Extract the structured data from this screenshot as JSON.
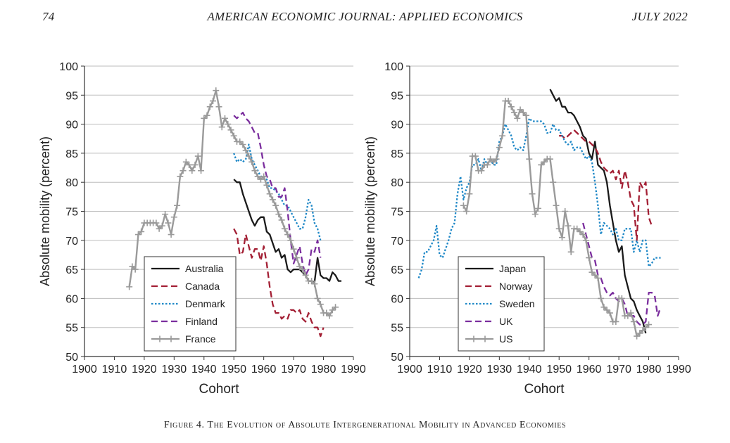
{
  "header": {
    "page_number": "74",
    "journal": "AMERICAN ECONOMIC JOURNAL: APPLIED ECONOMICS",
    "date": "JULY 2022"
  },
  "caption": "Figure 4. The Evolution of Absolute Intergenerational Mobility in Advanced Economies",
  "colors": {
    "black": "#1a1a1a",
    "red": "#a31f34",
    "blue": "#1f88c7",
    "purple": "#7b2e9e",
    "gray": "#9a9a9a",
    "grid": "#bdbdbd"
  },
  "chart_data": [
    {
      "type": "line",
      "xlabel": "Cohort",
      "ylabel": "Absolute mobility (percent)",
      "xlim": [
        1900,
        1990
      ],
      "ylim": [
        50,
        100
      ],
      "xticks": [
        "1900",
        "1910",
        "1920",
        "1930",
        "1940",
        "1950",
        "1960",
        "1970",
        "1980",
        "1990"
      ],
      "yticks": [
        "50",
        "55",
        "60",
        "65",
        "70",
        "75",
        "80",
        "85",
        "90",
        "95",
        "100"
      ],
      "legend": "bottom-left",
      "series": [
        {
          "name": "Australia",
          "style": "solid",
          "color": "#1a1a1a",
          "marker": false,
          "x": [
            1950,
            1951,
            1952,
            1953,
            1954,
            1955,
            1956,
            1957,
            1958,
            1959,
            1960,
            1961,
            1962,
            1963,
            1964,
            1965,
            1966,
            1967,
            1968,
            1969,
            1970,
            1971,
            1972,
            1973,
            1974,
            1975,
            1976,
            1977,
            1978,
            1979,
            1980,
            1981,
            1982,
            1983,
            1984,
            1985,
            1986
          ],
          "y": [
            80.5,
            80,
            80,
            78,
            76.5,
            75,
            73.5,
            72.5,
            73.5,
            74,
            74,
            71.5,
            71,
            69.5,
            68,
            68.5,
            67,
            67.5,
            65,
            64.5,
            65,
            65,
            65,
            64.5,
            64,
            63,
            63,
            62.8,
            67,
            64,
            63.5,
            63.5,
            63,
            64.5,
            64,
            63,
            63
          ]
        },
        {
          "name": "Canada",
          "style": "dashed",
          "color": "#a31f34",
          "marker": false,
          "x": [
            1950,
            1951,
            1952,
            1953,
            1954,
            1955,
            1956,
            1957,
            1958,
            1959,
            1960,
            1961,
            1962,
            1963,
            1964,
            1965,
            1966,
            1967,
            1968,
            1969,
            1970,
            1971,
            1972,
            1973,
            1974,
            1975,
            1976,
            1977,
            1978,
            1979,
            1980
          ],
          "y": [
            72,
            71,
            67.5,
            68,
            71,
            69,
            67,
            68.5,
            68.5,
            66.5,
            69,
            66,
            62,
            59,
            57.5,
            57.5,
            56.5,
            57,
            56.5,
            58,
            58,
            57.5,
            58,
            56.5,
            56,
            57.5,
            56,
            55,
            55,
            53.5,
            55
          ]
        },
        {
          "name": "Denmark",
          "style": "dotted",
          "color": "#1f88c7",
          "marker": false,
          "x": [
            1950,
            1951,
            1952,
            1953,
            1954,
            1955,
            1956,
            1957,
            1958,
            1959,
            1960,
            1961,
            1962,
            1963,
            1964,
            1965,
            1966,
            1967,
            1968,
            1969,
            1970,
            1971,
            1972,
            1973,
            1974,
            1975,
            1976,
            1977,
            1978,
            1979
          ],
          "y": [
            85,
            83.5,
            84,
            83.5,
            84,
            86.5,
            84,
            83,
            82,
            81,
            81,
            80.5,
            79,
            79,
            78.5,
            78,
            77,
            76,
            76,
            75,
            74,
            73,
            72,
            72,
            74,
            77,
            76,
            73,
            72,
            70
          ]
        },
        {
          "name": "Finland",
          "style": "dashed",
          "color": "#7b2e9e",
          "marker": false,
          "x": [
            1950,
            1951,
            1952,
            1953,
            1954,
            1955,
            1956,
            1957,
            1958,
            1959,
            1960,
            1961,
            1962,
            1963,
            1964,
            1965,
            1966,
            1967,
            1968,
            1969,
            1970,
            1971,
            1972,
            1973,
            1974,
            1975,
            1976,
            1977,
            1978,
            1979
          ],
          "y": [
            91.5,
            91,
            91.5,
            92,
            91,
            90.5,
            89.5,
            88.5,
            88.5,
            86,
            83,
            81,
            80.5,
            79,
            79,
            77.5,
            77.5,
            79,
            75,
            70,
            66,
            67.5,
            69,
            66,
            64,
            65,
            68.5,
            68,
            70,
            67
          ]
        },
        {
          "name": "France",
          "style": "solid",
          "color": "#9a9a9a",
          "marker": true,
          "x": [
            1915,
            1916,
            1917,
            1918,
            1919,
            1920,
            1921,
            1922,
            1923,
            1924,
            1925,
            1926,
            1927,
            1928,
            1929,
            1930,
            1931,
            1932,
            1933,
            1934,
            1935,
            1936,
            1937,
            1938,
            1939,
            1940,
            1941,
            1942,
            1943,
            1944,
            1945,
            1946,
            1947,
            1948,
            1949,
            1950,
            1951,
            1952,
            1953,
            1954,
            1955,
            1956,
            1957,
            1958,
            1959,
            1960,
            1961,
            1962,
            1963,
            1964,
            1965,
            1966,
            1967,
            1968,
            1969,
            1970,
            1971,
            1972,
            1973,
            1974,
            1975,
            1976,
            1977,
            1978,
            1979,
            1980,
            1981,
            1982,
            1983,
            1984
          ],
          "y": [
            62,
            65.5,
            65,
            71,
            71.5,
            73,
            73,
            73,
            73,
            73,
            72,
            72.5,
            74.5,
            73,
            71,
            74,
            76,
            81,
            82,
            83.5,
            83,
            82,
            83,
            84.5,
            82,
            91,
            91.5,
            93,
            94,
            95.8,
            93,
            89.5,
            91,
            90,
            89,
            88,
            87,
            87,
            86.5,
            85.5,
            84.5,
            83.5,
            82,
            81,
            80.5,
            81,
            79.5,
            78,
            77,
            76,
            74.5,
            73.5,
            72,
            71,
            70,
            68.5,
            67,
            65.5,
            65,
            64,
            63,
            63,
            62.5,
            60,
            59,
            57.5,
            57.5,
            57,
            58,
            58.5
          ]
        }
      ]
    },
    {
      "type": "line",
      "xlabel": "Cohort",
      "ylabel": "Absolute mobility (percent)",
      "xlim": [
        1900,
        1990
      ],
      "ylim": [
        50,
        100
      ],
      "xticks": [
        "1900",
        "1910",
        "1920",
        "1930",
        "1940",
        "1950",
        "1960",
        "1970",
        "1980",
        "1990"
      ],
      "yticks": [
        "50",
        "55",
        "60",
        "65",
        "70",
        "75",
        "80",
        "85",
        "90",
        "95",
        "100"
      ],
      "legend": "bottom-left",
      "series": [
        {
          "name": "Japan",
          "style": "solid",
          "color": "#1a1a1a",
          "marker": false,
          "x": [
            1947,
            1948,
            1949,
            1950,
            1951,
            1952,
            1953,
            1954,
            1955,
            1956,
            1957,
            1958,
            1959,
            1960,
            1961,
            1962,
            1963,
            1964,
            1965,
            1966,
            1967,
            1968,
            1969,
            1970,
            1971,
            1972,
            1973,
            1974,
            1975,
            1976,
            1977,
            1978,
            1979
          ],
          "y": [
            96,
            95,
            94,
            94.5,
            93,
            93,
            92,
            92,
            91.5,
            90.5,
            89.5,
            88,
            87.5,
            85,
            84,
            87,
            83,
            82.5,
            82,
            80,
            76,
            73,
            70,
            68,
            69,
            64,
            62,
            60,
            59.5,
            58,
            57,
            56,
            54
          ]
        },
        {
          "name": "Norway",
          "style": "dashed",
          "color": "#a31f34",
          "marker": false,
          "x": [
            1950,
            1951,
            1952,
            1953,
            1954,
            1955,
            1956,
            1957,
            1958,
            1959,
            1960,
            1961,
            1962,
            1963,
            1964,
            1965,
            1966,
            1967,
            1968,
            1969,
            1970,
            1971,
            1972,
            1973,
            1974,
            1975,
            1976,
            1977,
            1978,
            1979,
            1980,
            1981
          ],
          "y": [
            88,
            88,
            87.5,
            88,
            88.5,
            89,
            88.5,
            88,
            87.5,
            87,
            87,
            86.5,
            86,
            85,
            83.5,
            82.5,
            82,
            81.5,
            82,
            80.5,
            82,
            79,
            82,
            80,
            77,
            76,
            70,
            80,
            79,
            80,
            74,
            72.5
          ]
        },
        {
          "name": "Sweden",
          "style": "dotted",
          "color": "#1f88c7",
          "marker": false,
          "x": [
            1903,
            1904,
            1905,
            1906,
            1907,
            1908,
            1909,
            1910,
            1911,
            1912,
            1913,
            1914,
            1915,
            1916,
            1917,
            1918,
            1919,
            1920,
            1921,
            1922,
            1923,
            1924,
            1925,
            1926,
            1927,
            1928,
            1929,
            1930,
            1931,
            1932,
            1933,
            1934,
            1935,
            1936,
            1937,
            1938,
            1939,
            1940,
            1941,
            1942,
            1943,
            1944,
            1945,
            1946,
            1947,
            1948,
            1949,
            1950,
            1951,
            1952,
            1953,
            1954,
            1955,
            1956,
            1957,
            1958,
            1959,
            1960,
            1961,
            1962,
            1963,
            1964,
            1965,
            1966,
            1967,
            1968,
            1969,
            1970,
            1971,
            1972,
            1973,
            1974,
            1975,
            1976,
            1977,
            1978,
            1979,
            1980,
            1981,
            1982,
            1983,
            1984
          ],
          "y": [
            63.5,
            65,
            68,
            68,
            69,
            70,
            72.5,
            67.5,
            67,
            68.5,
            70,
            72,
            73,
            78,
            81,
            77,
            79,
            80,
            83,
            83,
            84,
            82,
            84,
            83,
            84,
            83,
            83,
            87,
            88,
            90,
            89,
            88,
            86,
            85.5,
            86,
            85.5,
            88,
            91,
            90.5,
            90.5,
            90.5,
            90.5,
            90,
            88.5,
            88.5,
            90,
            89,
            89,
            88,
            87,
            86.5,
            87,
            85.5,
            86,
            86,
            85,
            84,
            84.5,
            83.5,
            80,
            76,
            71,
            73,
            72.5,
            72,
            71,
            72,
            70,
            70,
            72,
            72,
            72,
            68,
            70,
            68,
            70,
            70,
            65.5,
            66,
            67,
            67,
            67
          ]
        },
        {
          "name": "UK",
          "style": "dashed",
          "color": "#7b2e9e",
          "marker": false,
          "x": [
            1958,
            1959,
            1960,
            1961,
            1962,
            1963,
            1964,
            1965,
            1966,
            1967,
            1968,
            1969,
            1970,
            1971,
            1972,
            1973,
            1974,
            1975,
            1976,
            1977,
            1978,
            1979,
            1980,
            1981,
            1982,
            1983,
            1984
          ],
          "y": [
            73,
            71,
            69,
            67,
            66.5,
            64,
            63.5,
            62,
            61,
            60.5,
            61,
            60,
            59.5,
            60,
            59,
            57,
            57,
            57,
            56,
            55.5,
            55.5,
            56,
            61,
            61,
            60.5,
            57,
            58.5
          ]
        },
        {
          "name": "US",
          "style": "solid",
          "color": "#9a9a9a",
          "marker": true,
          "x": [
            1918,
            1919,
            1920,
            1921,
            1922,
            1923,
            1924,
            1925,
            1926,
            1927,
            1928,
            1929,
            1930,
            1931,
            1932,
            1933,
            1934,
            1935,
            1936,
            1937,
            1938,
            1939,
            1940,
            1941,
            1942,
            1943,
            1944,
            1945,
            1946,
            1947,
            1948,
            1949,
            1950,
            1951,
            1952,
            1953,
            1954,
            1955,
            1956,
            1957,
            1958,
            1959,
            1960,
            1961,
            1962,
            1963,
            1964,
            1965,
            1966,
            1967,
            1968,
            1969,
            1970,
            1971,
            1972,
            1973,
            1974,
            1975,
            1976,
            1977,
            1978,
            1979,
            1980
          ],
          "y": [
            76,
            75,
            78,
            84.5,
            84.5,
            82,
            82,
            83,
            83,
            84,
            83.5,
            84,
            86,
            88,
            94,
            94,
            93,
            92,
            91,
            92.5,
            92,
            91.5,
            84,
            78,
            74.5,
            75.5,
            83,
            83.5,
            84,
            84,
            80,
            76,
            72,
            70.5,
            75,
            72.5,
            68,
            72,
            72,
            71.5,
            71,
            70,
            67,
            64.5,
            64,
            63.5,
            60,
            58.5,
            58,
            57.5,
            56,
            56,
            60,
            60,
            57,
            57,
            57.5,
            56,
            53.5,
            54,
            54.5,
            55,
            55.5
          ]
        }
      ]
    }
  ]
}
